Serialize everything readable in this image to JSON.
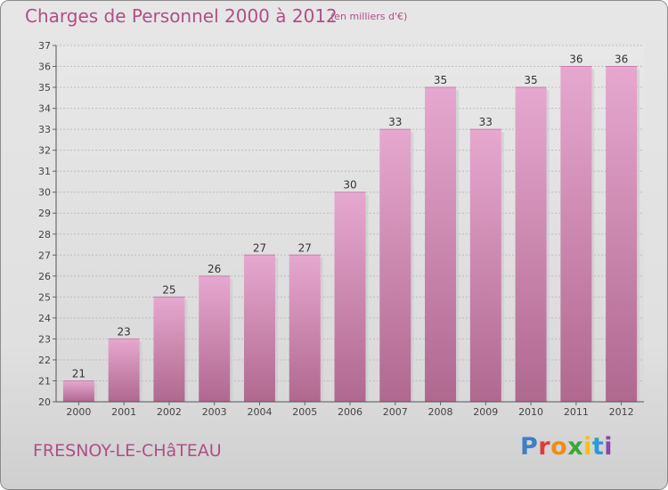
{
  "header": {
    "title": "Charges de Personnel 2000 à 2012",
    "subtitle": "(en milliers d'€)"
  },
  "footer": {
    "place": "FRESNOY-LE-CHâTEAU",
    "logo": "Proxiti",
    "logo_colors": [
      "#3b7fc4",
      "#e53935",
      "#f08c1a",
      "#3aa63a",
      "#f4c20d",
      "#2b9ad6",
      "#8e44ad"
    ]
  },
  "colors": {
    "bar_top": "#e6a8cf",
    "bar_bottom": "#b0688f",
    "text_accent": "#b04f86"
  },
  "chart_data": {
    "type": "bar",
    "categories": [
      "2000",
      "2001",
      "2002",
      "2003",
      "2004",
      "2005",
      "2006",
      "2007",
      "2008",
      "2009",
      "2010",
      "2011",
      "2012"
    ],
    "values": [
      21,
      23,
      25,
      26,
      27,
      27,
      30,
      33,
      35,
      33,
      35,
      36,
      36
    ],
    "title": "Charges de Personnel 2000 à 2012",
    "ylim": [
      20,
      37
    ],
    "yticks": [
      20,
      21,
      22,
      23,
      24,
      25,
      26,
      27,
      28,
      29,
      30,
      31,
      32,
      33,
      34,
      35,
      36,
      37
    ],
    "grid": true
  }
}
